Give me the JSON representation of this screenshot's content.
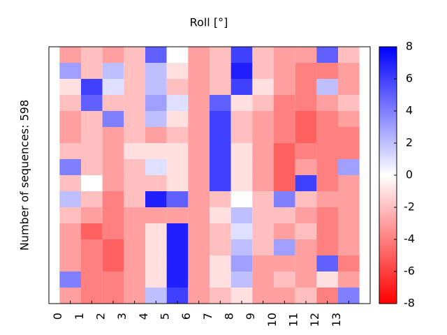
{
  "chart_data": {
    "type": "heatmap",
    "title": "Roll [°]",
    "ylabel": "Number of sequences: 598",
    "xlim": [
      -1,
      14
    ],
    "xticks": [
      0,
      1,
      2,
      3,
      4,
      5,
      6,
      7,
      8,
      9,
      10,
      11,
      12,
      13
    ],
    "values": [
      [
        -3,
        -2,
        -3,
        -2,
        5,
        0,
        -3,
        -2,
        6,
        -2,
        -3,
        -3,
        5,
        -2
      ],
      [
        3,
        -2,
        2,
        -2,
        2,
        -1,
        -3,
        -2,
        7,
        -2,
        -3,
        -4,
        -4,
        -3
      ],
      [
        -1,
        6,
        1,
        -2,
        2,
        -2,
        -3,
        -2,
        6,
        -1,
        -3,
        -4,
        2,
        -3
      ],
      [
        -2,
        5,
        -2,
        -2,
        3,
        1,
        -3,
        5,
        -1,
        -2,
        -4,
        -4,
        -3,
        -2
      ],
      [
        -3,
        -2,
        4,
        -2,
        2,
        -1,
        -3,
        6,
        -2,
        -3,
        -4,
        -5,
        -4,
        -3
      ],
      [
        -3,
        -2,
        -3,
        -2,
        -3,
        -2,
        -3,
        6,
        -2,
        -3,
        -4,
        -5,
        -4,
        -4
      ],
      [
        -2,
        -2,
        -3,
        -1,
        -1,
        -1,
        -3,
        6,
        -1,
        -3,
        -5,
        -4,
        -4,
        -4
      ],
      [
        4,
        -2,
        -3,
        -2,
        1,
        -1,
        -3,
        6,
        -1,
        -3,
        -5,
        -3,
        -4,
        3
      ],
      [
        -2,
        0,
        -3,
        -2,
        -2,
        -1,
        -3,
        6,
        -1,
        -3,
        -5,
        6,
        -4,
        -3
      ],
      [
        2,
        -2,
        -4,
        -2,
        7,
        5,
        -3,
        -2,
        0,
        -2,
        4,
        -2,
        -3,
        -3
      ],
      [
        -2,
        -3,
        -4,
        -3,
        -3,
        -3,
        -3,
        -1,
        2,
        -2,
        -2,
        -3,
        -4,
        -3
      ],
      [
        -3,
        -5,
        -4,
        -3,
        -1,
        7,
        -3,
        -2,
        1,
        -2,
        -3,
        -2,
        -4,
        -3
      ],
      [
        -3,
        -4,
        -5,
        -3,
        -1,
        7,
        -3,
        -2,
        2,
        -2,
        3,
        -3,
        -4,
        -3
      ],
      [
        -3,
        -4,
        -5,
        -3,
        -1,
        7,
        -3,
        -1,
        3,
        -3,
        -3,
        -3,
        5,
        -4
      ],
      [
        4,
        -4,
        -4,
        -3,
        -1,
        7,
        -3,
        -1,
        2,
        -3,
        -2,
        -3,
        -1,
        -3
      ],
      [
        -3,
        -4,
        -4,
        -3,
        2,
        6,
        -3,
        -2,
        -1,
        -3,
        -3,
        -2,
        -4,
        4
      ]
    ],
    "clim": [
      -8,
      8
    ],
    "cticks": [
      -8,
      -6,
      -4,
      -2,
      0,
      2,
      4,
      6,
      8
    ],
    "colormap": [
      "#ff0000",
      "#ffffff",
      "#0000ff"
    ]
  }
}
